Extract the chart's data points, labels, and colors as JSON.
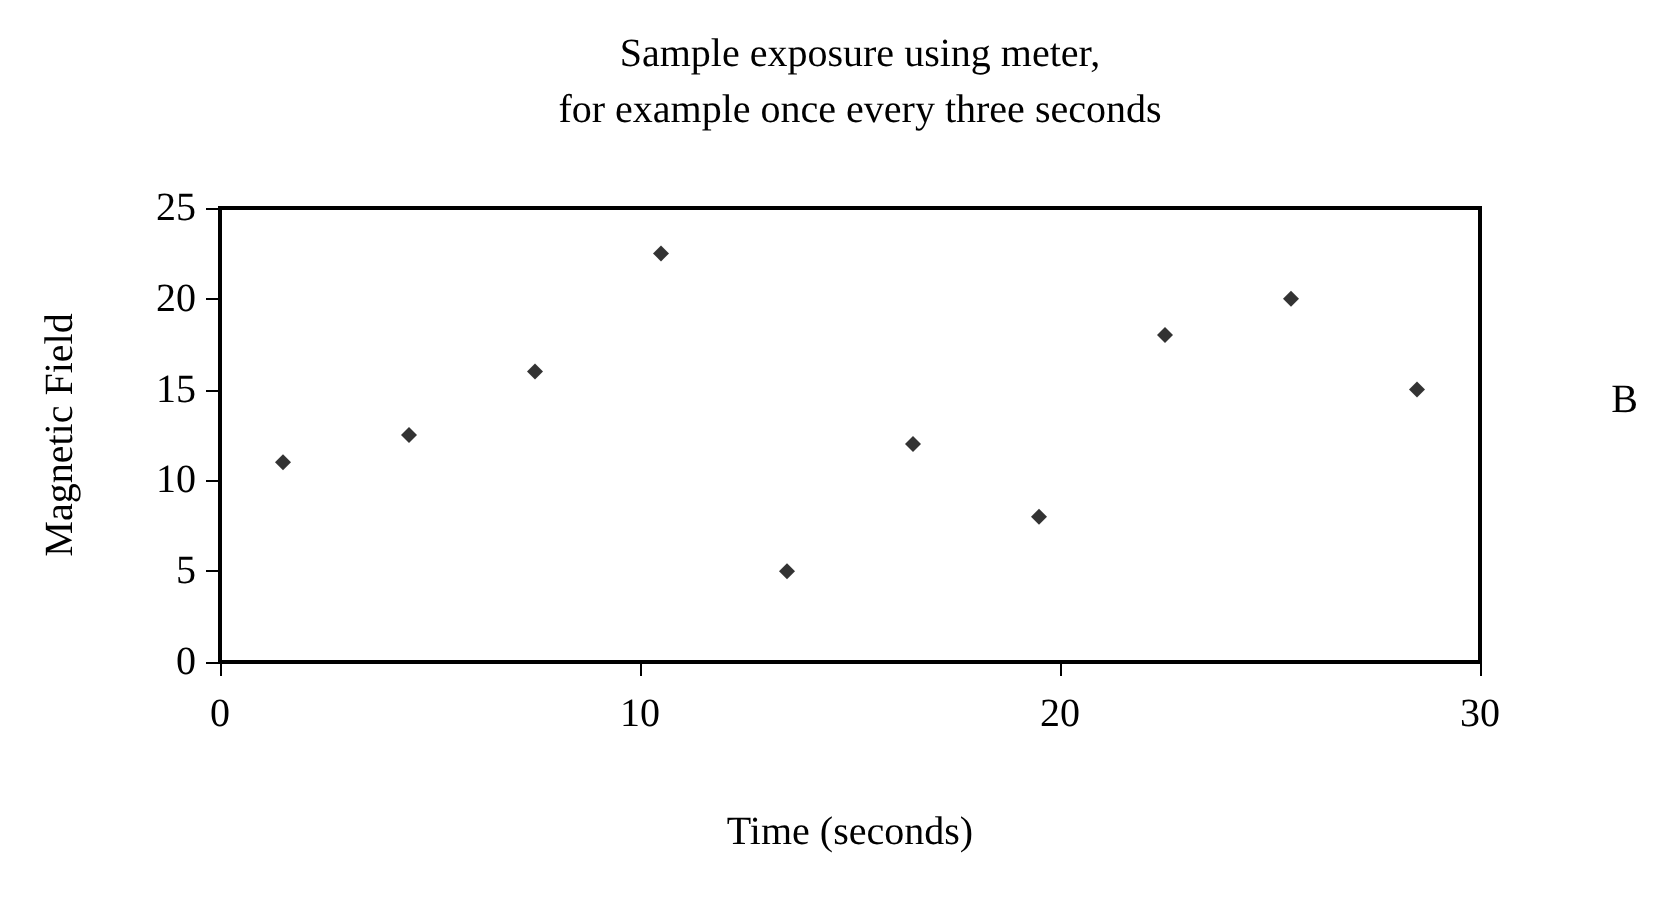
{
  "chart_data": {
    "type": "scatter",
    "title": "Sample exposure using meter,\nfor example once every three seconds",
    "xlabel": "Time (seconds)",
    "ylabel": "Magnetic Field",
    "annotations": [
      "B"
    ],
    "x": [
      1.5,
      4.5,
      7.5,
      10.5,
      13.5,
      16.5,
      19.5,
      22.5,
      25.5,
      28.5
    ],
    "series": [
      {
        "color": "#000000",
        "values": [
          11,
          12.5,
          16,
          22.5,
          5,
          12,
          8,
          18,
          20,
          15
        ]
      }
    ],
    "xlim": [
      0,
      30
    ],
    "xticks": [
      0,
      10,
      20,
      30
    ],
    "ylim": [
      0,
      25
    ],
    "yticks": [
      0,
      5,
      10,
      15,
      20,
      25
    ],
    "grid": false,
    "marker": "diamond"
  }
}
